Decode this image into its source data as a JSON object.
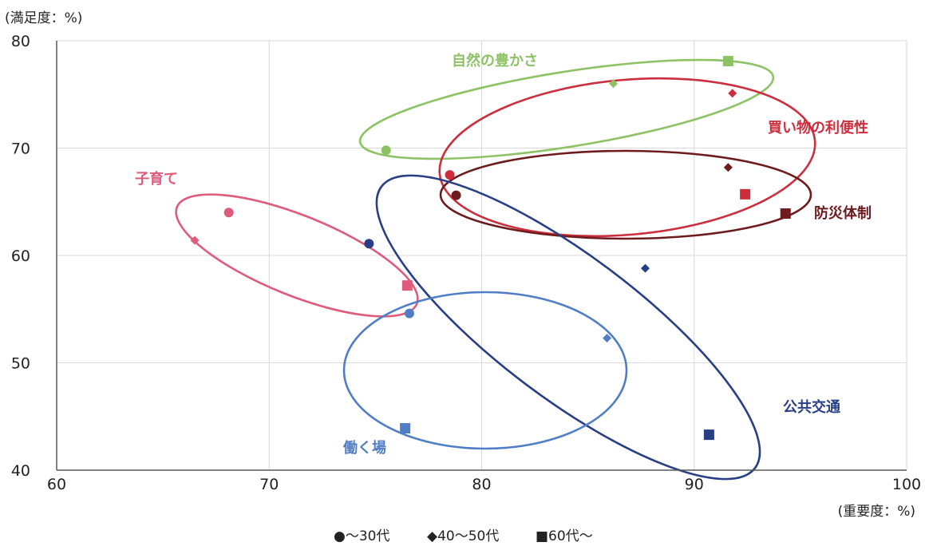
{
  "chart_data": {
    "type": "scatter",
    "ylabel": "(満足度：%)",
    "xlabel": "(重要度：%)",
    "xlim": [
      60,
      100
    ],
    "ylim": [
      40,
      80
    ],
    "x_ticks": [
      60,
      70,
      80,
      90,
      100
    ],
    "y_ticks": [
      40,
      50,
      60,
      70,
      80
    ],
    "grid": "vertical and horizontal",
    "legend_position": "bottom-center",
    "legend": [
      {
        "marker": "circle",
        "label": "●〜30代"
      },
      {
        "marker": "diamond",
        "label": "◆40〜50代"
      },
      {
        "marker": "square",
        "label": "■60代〜"
      }
    ],
    "groups": [
      {
        "name": "自然の豊かさ",
        "color": "#8dc365",
        "points": [
          {
            "age": "〜30代",
            "marker": "circle",
            "x": 75.5,
            "y": 69.8
          },
          {
            "age": "40〜50代",
            "marker": "diamond",
            "x": 86.2,
            "y": 76.0
          },
          {
            "age": "60代〜",
            "marker": "square",
            "x": 91.6,
            "y": 78.1
          }
        ]
      },
      {
        "name": "買い物の利便性",
        "color": "#cc2e3d",
        "points": [
          {
            "age": "〜30代",
            "marker": "circle",
            "x": 78.5,
            "y": 67.5
          },
          {
            "age": "40〜50代",
            "marker": "diamond",
            "x": 91.8,
            "y": 75.1
          },
          {
            "age": "60代〜",
            "marker": "square",
            "x": 92.4,
            "y": 65.7
          }
        ]
      },
      {
        "name": "防災体制",
        "color": "#6e1b1e",
        "points": [
          {
            "age": "〜30代",
            "marker": "circle",
            "x": 78.8,
            "y": 65.6
          },
          {
            "age": "40〜50代",
            "marker": "diamond",
            "x": 91.6,
            "y": 68.2
          },
          {
            "age": "60代〜",
            "marker": "square",
            "x": 94.3,
            "y": 63.9
          }
        ]
      },
      {
        "name": "子育て",
        "color": "#df5b7c",
        "points": [
          {
            "age": "〜30代",
            "marker": "circle",
            "x": 68.1,
            "y": 64.0
          },
          {
            "age": "40〜50代",
            "marker": "diamond",
            "x": 66.5,
            "y": 61.4
          },
          {
            "age": "60代〜",
            "marker": "square",
            "x": 76.5,
            "y": 57.2
          }
        ]
      },
      {
        "name": "公共交通",
        "color": "#283f86",
        "points": [
          {
            "age": "〜30代",
            "marker": "circle",
            "x": 74.7,
            "y": 61.1
          },
          {
            "age": "40〜50代",
            "marker": "diamond",
            "x": 87.7,
            "y": 58.8
          },
          {
            "age": "60代〜",
            "marker": "square",
            "x": 90.7,
            "y": 43.3
          }
        ]
      },
      {
        "name": "働く場",
        "color": "#4f7ec6",
        "points": [
          {
            "age": "〜30代",
            "marker": "circle",
            "x": 76.6,
            "y": 54.6
          },
          {
            "age": "40〜50代",
            "marker": "diamond",
            "x": 85.9,
            "y": 52.3
          },
          {
            "age": "60代〜",
            "marker": "square",
            "x": 76.4,
            "y": 43.9
          }
        ]
      }
    ]
  }
}
